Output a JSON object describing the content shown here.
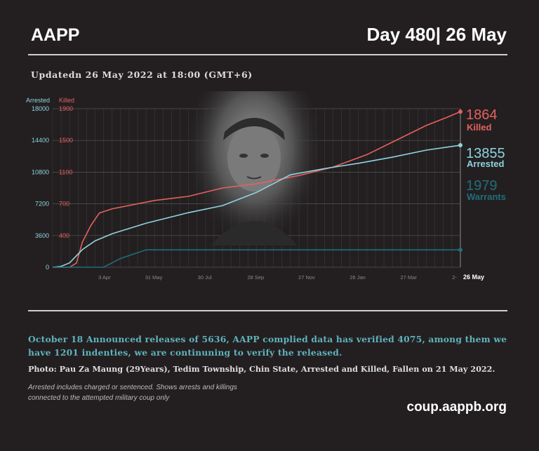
{
  "header": {
    "brand": "AAPP",
    "day": "Day 480| 26 May"
  },
  "updated": "Updatedn 26 May 2022 at 18:00 (GMT+6)",
  "colors": {
    "killed": "#e5615f",
    "arrested": "#8fd3e0",
    "warrants": "#1f6f7a",
    "background": "#231f20"
  },
  "photo": {
    "icon": "portrait-photo"
  },
  "chart_data": {
    "type": "line",
    "x_start": "1 Feb 2021",
    "x_tick_labels": [
      "3 Apr",
      "31 May",
      "30 Jul",
      "28 Sep",
      "27 Nov",
      "26 Jan",
      "27 Mar",
      "2-",
      "26 May"
    ],
    "x_tick_days": [
      61,
      119,
      179,
      239,
      299,
      359,
      419,
      473,
      480
    ],
    "axes": {
      "arrested": {
        "label": "Arrested",
        "ticks": [
          "18000",
          "14400",
          "10800",
          "7200",
          "3600",
          "0"
        ],
        "ylim": [
          0,
          18000
        ]
      },
      "killed": {
        "label": "Killed",
        "ticks": [
          "1900",
          "1500",
          "1100",
          "700",
          "400"
        ],
        "ylim": [
          0,
          1900
        ]
      }
    },
    "grid": true,
    "series": [
      {
        "name": "Killed",
        "axis": "killed",
        "end_value": "1864",
        "days": [
          0,
          20,
          28,
          35,
          45,
          55,
          70,
          120,
          160,
          200,
          240,
          290,
          330,
          370,
          410,
          440,
          465,
          480
        ],
        "values": [
          0,
          0,
          50,
          300,
          500,
          650,
          700,
          800,
          850,
          950,
          1000,
          1100,
          1200,
          1350,
          1550,
          1700,
          1800,
          1864
        ]
      },
      {
        "name": "Arrested",
        "axis": "arrested",
        "end_value": "13855",
        "days": [
          0,
          10,
          20,
          35,
          50,
          70,
          110,
          160,
          200,
          240,
          280,
          320,
          360,
          400,
          440,
          480
        ],
        "values": [
          0,
          100,
          500,
          2000,
          3000,
          3800,
          5000,
          6200,
          7000,
          8500,
          10500,
          11200,
          11800,
          12500,
          13300,
          13855
        ]
      },
      {
        "name": "Warrants",
        "axis": "arrested",
        "end_value": "1979",
        "days": [
          0,
          60,
          80,
          110,
          480
        ],
        "values": [
          0,
          0,
          1000,
          1979,
          1979
        ]
      }
    ]
  },
  "release_text": "October 18 Announced releases of 5636, AAPP complied data has verified 4075, among them we have 1201 indenties, we are continuning to verify the released.",
  "photo_caption": "Photo: Pau Za Maung (29Years), Tedim Township, Chin State, Arrested and Killed, Fallen on  21 May 2022.",
  "note": {
    "line1": "Arrested includes charged or sentenced. Shows arrests and killings",
    "line2": "connected to the attempted military coup only"
  },
  "site": "coup.aappb.org"
}
